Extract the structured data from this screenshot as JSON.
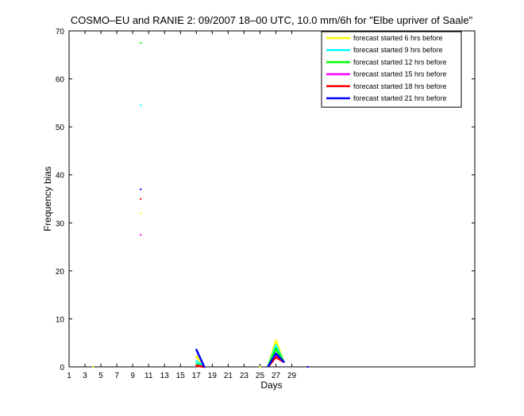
{
  "chart_data": {
    "type": "line",
    "title": "COSMO–EU and RANIE 2: 09/2007 18–00 UTC, 10.0 mm/6h for \"Elbe upriver of Saale\"",
    "xlabel": "Days",
    "ylabel": "Frequency bias",
    "xlim": [
      1,
      52
    ],
    "ylim": [
      0,
      70
    ],
    "xticks": [
      1,
      3,
      5,
      7,
      9,
      11,
      13,
      15,
      17,
      19,
      21,
      23,
      25,
      27,
      29
    ],
    "yticks": [
      0,
      10,
      20,
      30,
      40,
      50,
      60,
      70
    ],
    "grid": false,
    "legend_position": "top-right",
    "series": [
      {
        "name": "forecast started 6 hrs before",
        "color": "#ffff00",
        "points": [
          [
            4,
            0
          ],
          [
            10,
            32
          ],
          [
            17,
            2.2
          ],
          [
            18,
            0
          ],
          [
            25,
            0
          ],
          [
            27,
            5.5
          ],
          [
            28,
            1
          ]
        ],
        "segments": [
          [
            [
              17,
              2.2
            ],
            [
              18,
              0
            ]
          ],
          [
            [
              26,
              0
            ],
            [
              27,
              5.5
            ],
            [
              28,
              1
            ]
          ]
        ]
      },
      {
        "name": "forecast started 9 hrs before",
        "color": "#00ffff",
        "points": [
          [
            10,
            54.5
          ],
          [
            17,
            1.2
          ],
          [
            18,
            0
          ],
          [
            27,
            4.5
          ],
          [
            28,
            1
          ]
        ],
        "segments": [
          [
            [
              17,
              1.2
            ],
            [
              18,
              0
            ]
          ],
          [
            [
              26,
              0
            ],
            [
              27,
              4.5
            ],
            [
              28,
              1
            ]
          ]
        ]
      },
      {
        "name": "forecast started 12 hrs before",
        "color": "#00ff00",
        "points": [
          [
            10,
            67.5
          ],
          [
            17,
            0.6
          ],
          [
            18,
            0
          ],
          [
            27,
            3.8
          ],
          [
            28,
            1
          ]
        ],
        "segments": [
          [
            [
              17,
              0.6
            ],
            [
              18,
              0
            ]
          ],
          [
            [
              26,
              0
            ],
            [
              27,
              3.8
            ],
            [
              28,
              1
            ]
          ]
        ]
      },
      {
        "name": "forecast started 15 hrs before",
        "color": "#ff00ff",
        "points": [
          [
            10,
            27.5
          ],
          [
            17,
            0.3
          ],
          [
            18,
            0
          ],
          [
            27,
            2.2
          ],
          [
            28,
            1
          ]
        ],
        "segments": [
          [
            [
              17,
              0.3
            ],
            [
              18,
              0
            ]
          ],
          [
            [
              26,
              0
            ],
            [
              27,
              2.2
            ],
            [
              28,
              1
            ]
          ]
        ]
      },
      {
        "name": "forecast started 18 hrs before",
        "color": "#ff0000",
        "points": [
          [
            10,
            35
          ],
          [
            17,
            0.2
          ],
          [
            18,
            0
          ],
          [
            27,
            2.0
          ],
          [
            28,
            1
          ]
        ],
        "segments": [
          [
            [
              17,
              0.2
            ],
            [
              18,
              0
            ]
          ],
          [
            [
              26,
              0
            ],
            [
              27,
              2.0
            ],
            [
              28,
              1
            ]
          ]
        ]
      },
      {
        "name": "forecast started 21 hrs before",
        "color": "#0000ff",
        "points": [
          [
            10,
            37
          ],
          [
            17,
            3.6
          ],
          [
            18,
            0
          ],
          [
            27,
            2.8
          ],
          [
            28,
            1
          ],
          [
            31,
            0
          ]
        ],
        "segments": [
          [
            [
              17,
              3.6
            ],
            [
              18,
              0
            ]
          ],
          [
            [
              26,
              0
            ],
            [
              27,
              2.8
            ],
            [
              28,
              1
            ]
          ]
        ]
      }
    ]
  }
}
